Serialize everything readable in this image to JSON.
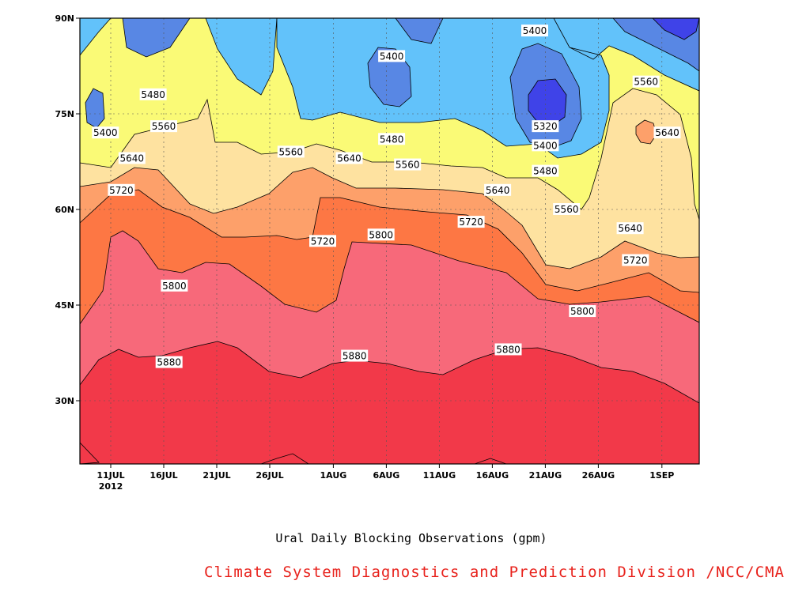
{
  "chart_data": {
    "type": "contour",
    "title": "Ural Daily Blocking Observations (gpm)",
    "credit": "Climate System Diagnostics and Prediction Division /NCC/CMA",
    "x_ticks": [
      "11JUL",
      "16JUL",
      "21JUL",
      "26JUL",
      "1AUG",
      "6AUG",
      "11AUG",
      "16AUG",
      "21AUG",
      "26AUG",
      "1SEP"
    ],
    "x_year_label": "2012",
    "y_ticks": [
      "90N",
      "75N",
      "60N",
      "45N",
      "30N"
    ],
    "grid": true,
    "contour_levels": [
      5320,
      5400,
      5480,
      5560,
      5640,
      5720,
      5800,
      5880
    ],
    "fill_colors": [
      "#3f43e8",
      "#5887e4",
      "#62c2fa",
      "#fafa76",
      "#fee2a0",
      "#fda06a",
      "#fd7744",
      "#f7697a",
      "#f23949"
    ],
    "labels": [
      {
        "text": "5400",
        "day": 10.5,
        "lat": 72
      },
      {
        "text": "5480",
        "day": 15,
        "lat": 78
      },
      {
        "text": "5560",
        "day": 16,
        "lat": 73
      },
      {
        "text": "5640",
        "day": 13,
        "lat": 68
      },
      {
        "text": "5720",
        "day": 12,
        "lat": 63
      },
      {
        "text": "5800",
        "day": 17,
        "lat": 48
      },
      {
        "text": "5880",
        "day": 16.5,
        "lat": 36
      },
      {
        "text": "5560",
        "day": 28,
        "lat": 69
      },
      {
        "text": "5640",
        "day": 33.5,
        "lat": 68
      },
      {
        "text": "5720",
        "day": 31,
        "lat": 55
      },
      {
        "text": "5800",
        "day": 36.5,
        "lat": 56
      },
      {
        "text": "5880",
        "day": 34,
        "lat": 37
      },
      {
        "text": "5400",
        "day": 37.5,
        "lat": 84
      },
      {
        "text": "5480",
        "day": 37.5,
        "lat": 71
      },
      {
        "text": "5560",
        "day": 39,
        "lat": 67
      },
      {
        "text": "5720",
        "day": 45,
        "lat": 58
      },
      {
        "text": "5640",
        "day": 47.5,
        "lat": 63
      },
      {
        "text": "5880",
        "day": 48.5,
        "lat": 38
      },
      {
        "text": "5400",
        "day": 51,
        "lat": 88
      },
      {
        "text": "5320",
        "day": 52,
        "lat": 73
      },
      {
        "text": "5400",
        "day": 52,
        "lat": 70
      },
      {
        "text": "5480",
        "day": 52,
        "lat": 66
      },
      {
        "text": "5560",
        "day": 54,
        "lat": 60
      },
      {
        "text": "5800",
        "day": 55.5,
        "lat": 44
      },
      {
        "text": "5640",
        "day": 60,
        "lat": 57
      },
      {
        "text": "5720",
        "day": 60.5,
        "lat": 52
      },
      {
        "text": "5560",
        "day": 61.5,
        "lat": 80
      },
      {
        "text": "5640",
        "day": 63.5,
        "lat": 72
      }
    ]
  }
}
